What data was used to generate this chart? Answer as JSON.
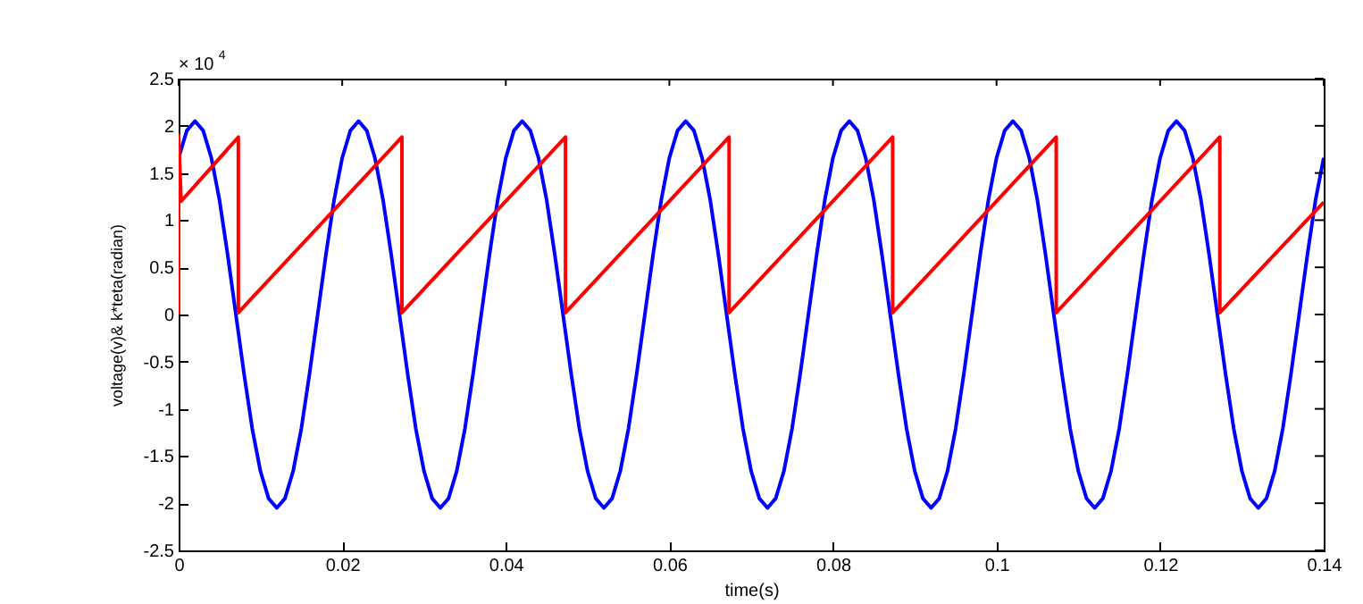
{
  "chart_data": {
    "type": "line",
    "xlabel": "time(s)",
    "ylabel": "voltage(v)& k*teta(radian)",
    "annotations": [
      "× 10$^{4}$"
    ],
    "xlim": [
      0,
      0.14
    ],
    "xticks": [
      0,
      0.02,
      0.04,
      0.06,
      0.08,
      0.1,
      0.12,
      0.14
    ],
    "ylim": [
      -2.5,
      2.5
    ],
    "yticks": [
      -2.5,
      -2,
      -1.5,
      -1,
      -0.5,
      0,
      0.5,
      1,
      1.5,
      2,
      2.5
    ],
    "series": [
      {
        "color": "#0000ff",
        "x": [
          0,
          0.001,
          0.002,
          0.003,
          0.004,
          0.005,
          0.006,
          0.007,
          0.008,
          0.009,
          0.01,
          0.011,
          0.012,
          0.013,
          0.014,
          0.015,
          0.016,
          0.017,
          0.018,
          0.019,
          0.02,
          0.021,
          0.022,
          0.023,
          0.024,
          0.025,
          0.026,
          0.027,
          0.028,
          0.029,
          0.03,
          0.031,
          0.032,
          0.033,
          0.034,
          0.035,
          0.036,
          0.037,
          0.038,
          0.039,
          0.04,
          0.041,
          0.042,
          0.043,
          0.044,
          0.045,
          0.046,
          0.047,
          0.048,
          0.049,
          0.05,
          0.051,
          0.052,
          0.053,
          0.054,
          0.055,
          0.056,
          0.057,
          0.058,
          0.059,
          0.06,
          0.061,
          0.062,
          0.063,
          0.064,
          0.065,
          0.066,
          0.067,
          0.068,
          0.069,
          0.07,
          0.071,
          0.072,
          0.073,
          0.074,
          0.075,
          0.076,
          0.077,
          0.078,
          0.079,
          0.08,
          0.081,
          0.082,
          0.083,
          0.084,
          0.085,
          0.086,
          0.087,
          0.088,
          0.089,
          0.09,
          0.091,
          0.092,
          0.093,
          0.094,
          0.095,
          0.096,
          0.097,
          0.098,
          0.099,
          0.1,
          0.101,
          0.102,
          0.103,
          0.104,
          0.105,
          0.106,
          0.107,
          0.108,
          0.109,
          0.11,
          0.111,
          0.112,
          0.113,
          0.114,
          0.115,
          0.116,
          0.117,
          0.118,
          0.119,
          0.12,
          0.121,
          0.122,
          0.123,
          0.124,
          0.125,
          0.126,
          0.127,
          0.128,
          0.129,
          0.13,
          0.131,
          0.132,
          0.133,
          0.134,
          0.135,
          0.136,
          0.137,
          0.138,
          0.139,
          0.14
        ],
        "values": [
          1.66,
          1.95,
          2.05,
          1.95,
          1.66,
          1.21,
          0.63,
          0,
          -0.63,
          -1.21,
          -1.66,
          -1.95,
          -2.05,
          -1.95,
          -1.66,
          -1.21,
          -0.63,
          0,
          0.63,
          1.21,
          1.66,
          1.95,
          2.05,
          1.95,
          1.66,
          1.21,
          0.63,
          0,
          -0.63,
          -1.21,
          -1.66,
          -1.95,
          -2.05,
          -1.95,
          -1.66,
          -1.21,
          -0.63,
          0,
          0.63,
          1.21,
          1.66,
          1.95,
          2.05,
          1.95,
          1.66,
          1.21,
          0.63,
          0,
          -0.63,
          -1.21,
          -1.66,
          -1.95,
          -2.05,
          -1.95,
          -1.66,
          -1.21,
          -0.63,
          0,
          0.63,
          1.21,
          1.66,
          1.95,
          2.05,
          1.95,
          1.66,
          1.21,
          0.63,
          0,
          -0.63,
          -1.21,
          -1.66,
          -1.95,
          -2.05,
          -1.95,
          -1.66,
          -1.21,
          -0.63,
          0,
          0.63,
          1.21,
          1.66,
          1.95,
          2.05,
          1.95,
          1.66,
          1.21,
          0.63,
          0,
          -0.63,
          -1.21,
          -1.66,
          -1.95,
          -2.05,
          -1.95,
          -1.66,
          -1.21,
          -0.63,
          0,
          0.63,
          1.21,
          1.66,
          1.95,
          2.05,
          1.95,
          1.66,
          1.21,
          0.63,
          0,
          -0.63,
          -1.21,
          -1.66,
          -1.95,
          -2.05,
          -1.95,
          -1.66,
          -1.21,
          -0.63,
          0,
          0.63,
          1.21,
          1.66,
          1.95,
          2.05,
          1.95,
          1.66,
          1.21,
          0.63,
          0,
          -0.63,
          -1.21,
          -1.66,
          -1.95,
          -2.05,
          -1.95,
          -1.66,
          -1.21,
          -0.63,
          0,
          0.63,
          1.21,
          1.66
        ]
      },
      {
        "color": "#ff0000",
        "x": [
          0,
          0,
          0.0003,
          0.0073,
          0.0073,
          0.0273,
          0.0273,
          0.0473,
          0.0473,
          0.0673,
          0.0673,
          0.0873,
          0.0873,
          0.1073,
          0.1073,
          0.1273,
          0.1273,
          0.14
        ],
        "values": [
          0,
          1.9,
          1.2,
          1.88,
          0.02,
          1.88,
          0.02,
          1.88,
          0.02,
          1.88,
          0.02,
          1.88,
          0.02,
          1.88,
          0.02,
          1.88,
          0.02,
          1.19
        ]
      }
    ]
  }
}
